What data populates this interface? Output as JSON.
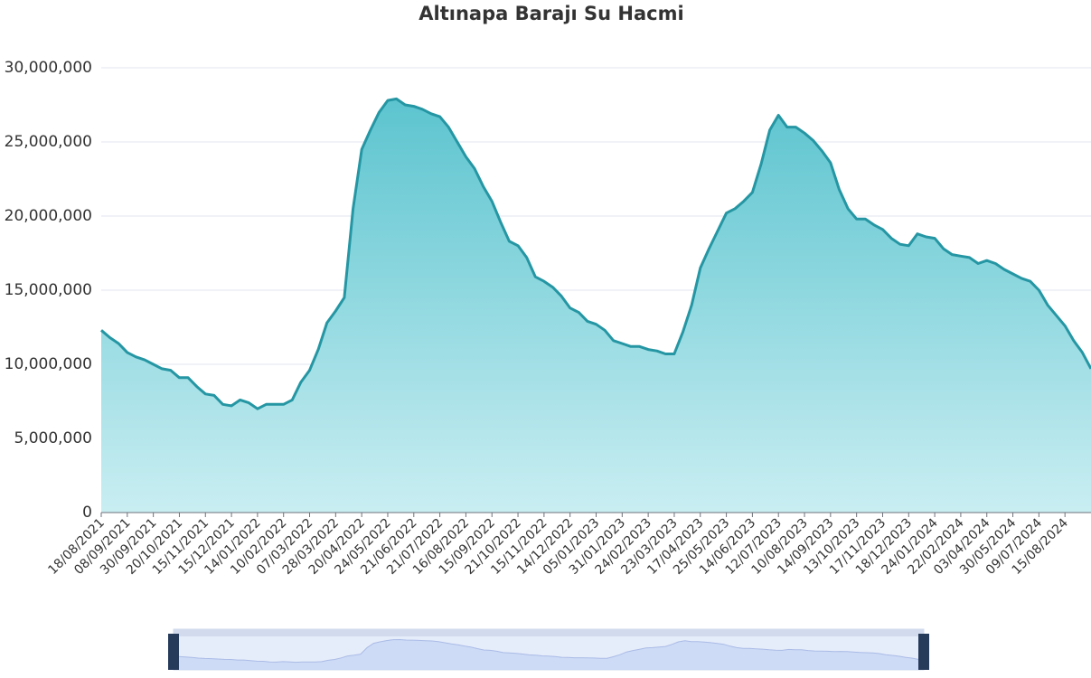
{
  "chart_data": {
    "type": "area",
    "title": "Altınapa Barajı Su Hacmi",
    "categories": [
      "18/08/2021",
      null,
      null,
      "08/09/2021",
      null,
      null,
      "30/09/2021",
      null,
      null,
      "20/10/2021",
      null,
      null,
      "15/11/2021",
      null,
      null,
      "15/12/2021",
      null,
      null,
      "14/01/2022",
      null,
      null,
      "10/02/2022",
      null,
      null,
      "07/03/2022",
      null,
      null,
      "28/03/2022",
      null,
      null,
      "20/04/2022",
      null,
      null,
      "24/05/2022",
      null,
      null,
      "21/06/2022",
      null,
      null,
      "21/07/2022",
      null,
      null,
      "16/08/2022",
      null,
      null,
      "15/09/2022",
      null,
      null,
      "21/10/2022",
      null,
      null,
      "15/11/2022",
      null,
      null,
      "14/12/2022",
      null,
      null,
      "05/01/2023",
      null,
      null,
      "31/01/2023",
      null,
      null,
      "24/02/2023",
      null,
      null,
      "23/03/2023",
      null,
      null,
      "17/04/2023",
      null,
      null,
      "25/05/2023",
      null,
      null,
      "14/06/2023",
      null,
      null,
      "12/07/2023",
      null,
      null,
      "10/08/2023",
      null,
      null,
      "14/09/2023",
      null,
      null,
      "13/10/2023",
      null,
      null,
      "17/11/2023",
      null,
      null,
      "18/12/2023",
      null,
      null,
      "24/01/2024",
      null,
      null,
      "22/02/2024",
      null,
      null,
      "03/04/2024",
      null,
      null,
      "30/05/2024",
      null,
      null,
      "09/07/2024",
      null,
      null,
      "15/08/2024",
      null,
      null,
      null
    ],
    "values": [
      12300000,
      11800000,
      11400000,
      10800000,
      10500000,
      10300000,
      10000000,
      9700000,
      9600000,
      9100000,
      9100000,
      8500000,
      8000000,
      7900000,
      7300000,
      7200000,
      7600000,
      7400000,
      7000000,
      7300000,
      7300000,
      7300000,
      7600000,
      8800000,
      9600000,
      11000000,
      12800000,
      13600000,
      14500000,
      20500000,
      24500000,
      25800000,
      27000000,
      27800000,
      27900000,
      27500000,
      27400000,
      27200000,
      26900000,
      26700000,
      26000000,
      25000000,
      24000000,
      23200000,
      22000000,
      21000000,
      19600000,
      18300000,
      18000000,
      17200000,
      15900000,
      15600000,
      15200000,
      14600000,
      13800000,
      13500000,
      12900000,
      12700000,
      12300000,
      11600000,
      11400000,
      11200000,
      11200000,
      11000000,
      10900000,
      10700000,
      10700000,
      12200000,
      14000000,
      16500000,
      17800000,
      19000000,
      20200000,
      20500000,
      21000000,
      21600000,
      23500000,
      25800000,
      26800000,
      26000000,
      26000000,
      25600000,
      25100000,
      24400000,
      23600000,
      21800000,
      20500000,
      19800000,
      19800000,
      19400000,
      19100000,
      18500000,
      18100000,
      18000000,
      18800000,
      18600000,
      18500000,
      17800000,
      17400000,
      17300000,
      17200000,
      16800000,
      17000000,
      16800000,
      16400000,
      16100000,
      15800000,
      15600000,
      15000000,
      14000000,
      13300000,
      12600000,
      11600000,
      10800000,
      9700000
    ],
    "color": "#2596a3",
    "ylim": [
      0,
      30000000
    ],
    "yticks": [
      0,
      {
        "value": 5000000,
        "label": "5,000,000"
      },
      {
        "value": 10000000,
        "label": "10,000,000"
      },
      {
        "value": 15000000,
        "label": "15,000,000"
      },
      {
        "value": 20000000,
        "label": "20,000,000"
      },
      {
        "value": 25000000,
        "label": "25,000,000"
      },
      {
        "value": 30000000,
        "label": "30,000,000"
      }
    ],
    "grid": true
  }
}
